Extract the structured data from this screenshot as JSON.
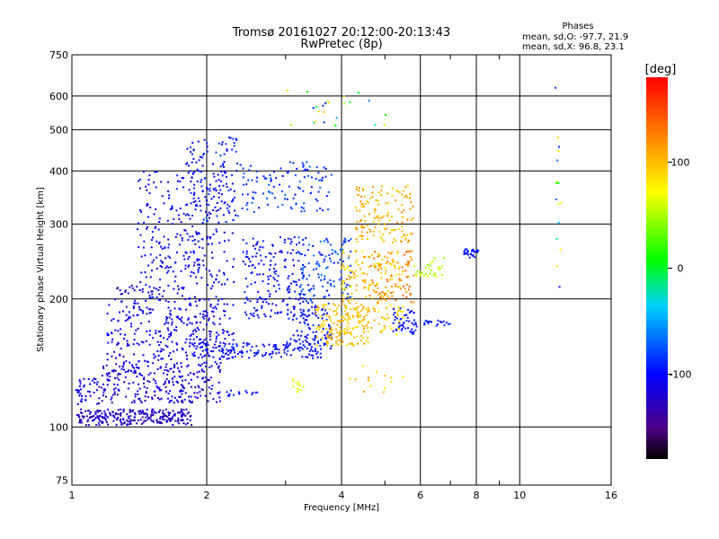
{
  "chart_data": {
    "type": "scatter",
    "title": "Tromsø 20161027 20:12:00-20:13:43",
    "subtitle": "RwPretec (8p)",
    "xlabel": "Frequency [MHz]",
    "ylabel": "Stationary phase Virtual Height [km]",
    "x_scale": "log",
    "y_scale": "log",
    "xlim": [
      1,
      16
    ],
    "ylim": [
      73,
      750
    ],
    "x_ticks": [
      1,
      2,
      4,
      6,
      8,
      10,
      16
    ],
    "x_tick_labels": [
      "1",
      "2",
      "4",
      "6",
      "8",
      "10",
      "16"
    ],
    "y_ticks": [
      75,
      100,
      200,
      300,
      400,
      500,
      600,
      750
    ],
    "y_tick_labels": [
      "75",
      "100",
      "200",
      "300",
      "400",
      "500",
      "600",
      "750"
    ],
    "grid": true,
    "stats": {
      "header": "Phases",
      "line_O": "mean, sd,O: -97.7, 21.9",
      "line_X": "mean, sd,X:  96.8, 23.1"
    },
    "colorbar": {
      "label": "[deg]",
      "range": [
        -180,
        180
      ],
      "ticks": [
        100,
        0,
        -100
      ],
      "tick_labels": [
        "100",
        "0",
        "-100"
      ]
    },
    "clusters": [
      {
        "f": [
          1.02,
          1.85
        ],
        "h": [
          101,
          110
        ],
        "phase": [
          -140,
          -110
        ],
        "n": 260
      },
      {
        "f": [
          1.02,
          1.15
        ],
        "h": [
          113,
          130
        ],
        "phase": [
          -120,
          -95
        ],
        "n": 40
      },
      {
        "f": [
          1.15,
          2.15
        ],
        "h": [
          114,
          140
        ],
        "phase": [
          -130,
          -100
        ],
        "n": 260
      },
      {
        "f": [
          1.2,
          2.3
        ],
        "h": [
          140,
          200
        ],
        "phase": [
          -120,
          -95
        ],
        "n": 320
      },
      {
        "f": [
          1.4,
          2.3
        ],
        "h": [
          200,
          400
        ],
        "phase": [
          -120,
          -90
        ],
        "n": 300
      },
      {
        "f": [
          1.8,
          2.4
        ],
        "h": [
          300,
          480
        ],
        "phase": [
          -110,
          -80
        ],
        "n": 120
      },
      {
        "f": [
          1.25,
          1.6
        ],
        "h": [
          205,
          215
        ],
        "phase": [
          -130,
          -110
        ],
        "n": 20
      },
      {
        "f": [
          1.85,
          3.6
        ],
        "h": [
          145,
          158
        ],
        "phase": [
          -110,
          -85
        ],
        "n": 140
      },
      {
        "f": [
          2.4,
          3.3
        ],
        "h": [
          180,
          280
        ],
        "phase": [
          -110,
          -85
        ],
        "n": 180
      },
      {
        "f": [
          2.4,
          3.8
        ],
        "h": [
          320,
          420
        ],
        "phase": [
          -100,
          -70
        ],
        "n": 110
      },
      {
        "f": [
          3.0,
          3.8
        ],
        "h": [
          150,
          200
        ],
        "phase": [
          -110,
          -80
        ],
        "n": 120
      },
      {
        "f": [
          3.2,
          4.2
        ],
        "h": [
          200,
          280
        ],
        "phase": [
          -100,
          -60
        ],
        "n": 120
      },
      {
        "f": [
          3.5,
          4.6
        ],
        "h": [
          155,
          195
        ],
        "phase": [
          85,
          115
        ],
        "n": 160
      },
      {
        "f": [
          4.0,
          5.5
        ],
        "h": [
          165,
          260
        ],
        "phase": [
          75,
          115
        ],
        "n": 200
      },
      {
        "f": [
          4.3,
          5.8
        ],
        "h": [
          270,
          370
        ],
        "phase": [
          85,
          125
        ],
        "n": 140
      },
      {
        "f": [
          4.6,
          5.8
        ],
        "h": [
          195,
          260
        ],
        "phase": [
          110,
          145
        ],
        "n": 70
      },
      {
        "f": [
          5.2,
          5.9
        ],
        "h": [
          165,
          190
        ],
        "phase": [
          -110,
          -80
        ],
        "n": 50
      },
      {
        "f": [
          5.8,
          6.8
        ],
        "h": [
          225,
          250
        ],
        "phase": [
          40,
          70
        ],
        "n": 30
      },
      {
        "f": [
          6.1,
          7.1
        ],
        "h": [
          172,
          178
        ],
        "phase": [
          -100,
          -80
        ],
        "n": 20
      },
      {
        "f": [
          7.5,
          8.1
        ],
        "h": [
          250,
          262
        ],
        "phase": [
          -110,
          -85
        ],
        "n": 30
      },
      {
        "f": [
          3.1,
          3.3
        ],
        "h": [
          120,
          130
        ],
        "phase": [
          50,
          70
        ],
        "n": 12
      },
      {
        "f": [
          2.2,
          2.6
        ],
        "h": [
          118,
          122
        ],
        "phase": [
          -100,
          -85
        ],
        "n": 15
      },
      {
        "f": [
          12.0,
          12.4
        ],
        "h": [
          200,
          650
        ],
        "phase": [
          -120,
          130
        ],
        "n": 16
      },
      {
        "f": [
          3.0,
          5.2
        ],
        "h": [
          500,
          620
        ],
        "phase": [
          -100,
          130
        ],
        "n": 25
      },
      {
        "f": [
          4.0,
          5.6
        ],
        "h": [
          120,
          140
        ],
        "phase": [
          80,
          120
        ],
        "n": 14
      }
    ]
  }
}
